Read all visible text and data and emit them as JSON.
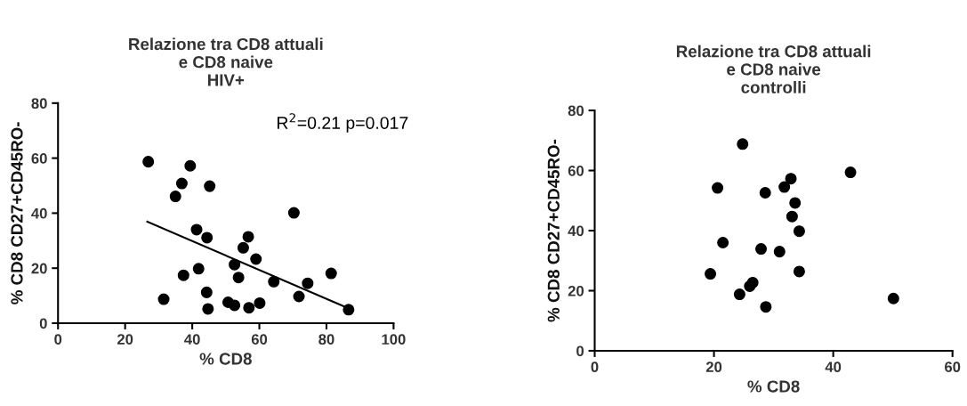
{
  "chart_data": [
    {
      "type": "scatter",
      "title": "Relazione tra CD8 attuali\ne CD8 naive\nHIV+",
      "xlabel": "% CD8",
      "ylabel": "% CD8 CD27+CD45RO-",
      "xlim": [
        0,
        100
      ],
      "xticks": [
        0,
        20,
        40,
        60,
        80,
        100
      ],
      "ylim": [
        0,
        80
      ],
      "yticks": [
        0,
        20,
        40,
        60,
        80
      ],
      "annotations": [
        "R$^{2}$=0.21 p=0.017"
      ],
      "series": [
        {
          "marker": "circle",
          "color": "#000000",
          "x": [
            26.9,
            31.5,
            35.0,
            36.9,
            37.4,
            39.4,
            41.3,
            41.9,
            44.4,
            44.3,
            45.2,
            44.7,
            50.7,
            52.6,
            52.6,
            53.8,
            55.2,
            56.7,
            56.9,
            59.0,
            60.1,
            64.3,
            70.3,
            71.8,
            74.4,
            81.4,
            86.6
          ],
          "values": [
            58.7,
            8.7,
            46.1,
            50.8,
            17.4,
            57.2,
            34.0,
            19.8,
            31.1,
            11.2,
            49.8,
            5.2,
            7.6,
            6.5,
            21.3,
            16.6,
            27.4,
            31.4,
            5.6,
            23.3,
            7.3,
            15.1,
            40.1,
            9.7,
            14.5,
            18.1,
            4.9
          ]
        },
        {
          "type": "line",
          "color": "#000000",
          "x": [
            26.6,
            86.6
          ],
          "values": [
            36.9,
            5.4
          ]
        }
      ]
    },
    {
      "type": "scatter",
      "title": "Relazione tra CD8 attuali\ne CD8 naive\ncontrolli",
      "xlabel": "% CD8",
      "ylabel": "% CD8 CD27+CD45RO-",
      "xlim": [
        0,
        60
      ],
      "xticks": [
        0,
        20,
        40,
        60
      ],
      "ylim": [
        0,
        80
      ],
      "yticks": [
        0,
        20,
        40,
        60,
        80
      ],
      "series": [
        {
          "marker": "circle",
          "color": "#000000",
          "x": [
            24.8,
            20.6,
            32.9,
            31.8,
            28.6,
            33.6,
            33.1,
            34.3,
            21.5,
            27.9,
            31.0,
            19.4,
            34.3,
            26.5,
            26.0,
            24.3,
            28.7,
            42.9,
            50.1
          ],
          "values": [
            68.8,
            54.2,
            57.3,
            54.5,
            52.6,
            49.2,
            44.7,
            39.8,
            36.0,
            33.9,
            33.0,
            25.6,
            26.4,
            22.7,
            21.5,
            18.8,
            14.6,
            59.4,
            17.4
          ]
        }
      ]
    }
  ]
}
